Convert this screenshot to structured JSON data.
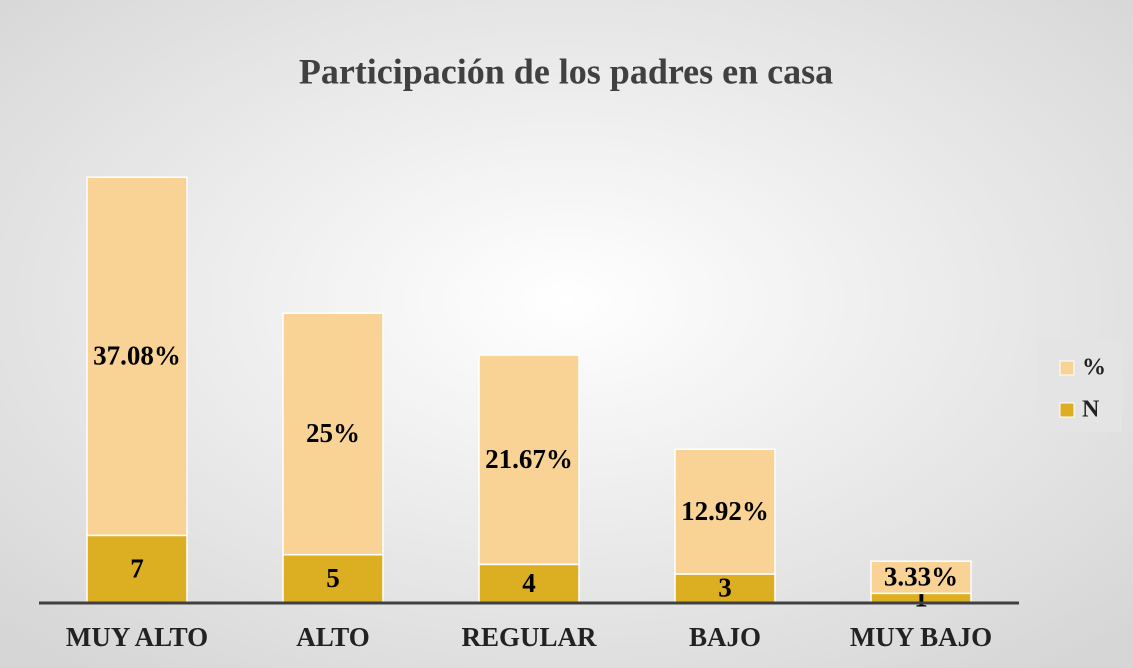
{
  "chart_data": {
    "type": "stacked_bar",
    "title": "Participación de los padres en casa",
    "categories": [
      "MUY ALTO",
      "ALTO",
      "REGULAR",
      "BAJO",
      "MUY BAJO"
    ],
    "series": [
      {
        "name": "N",
        "color": "#dcae22",
        "values": [
          7,
          5,
          4,
          3,
          1
        ]
      },
      {
        "name": "%",
        "color": "#f9d396",
        "values": [
          37.08,
          25,
          21.67,
          12.92,
          3.33
        ],
        "value_labels": [
          "37.08%",
          "25%",
          "21.67%",
          "12.92%",
          "3.33%"
        ]
      }
    ],
    "ylim": [
      0,
      50
    ],
    "legend": "right"
  }
}
